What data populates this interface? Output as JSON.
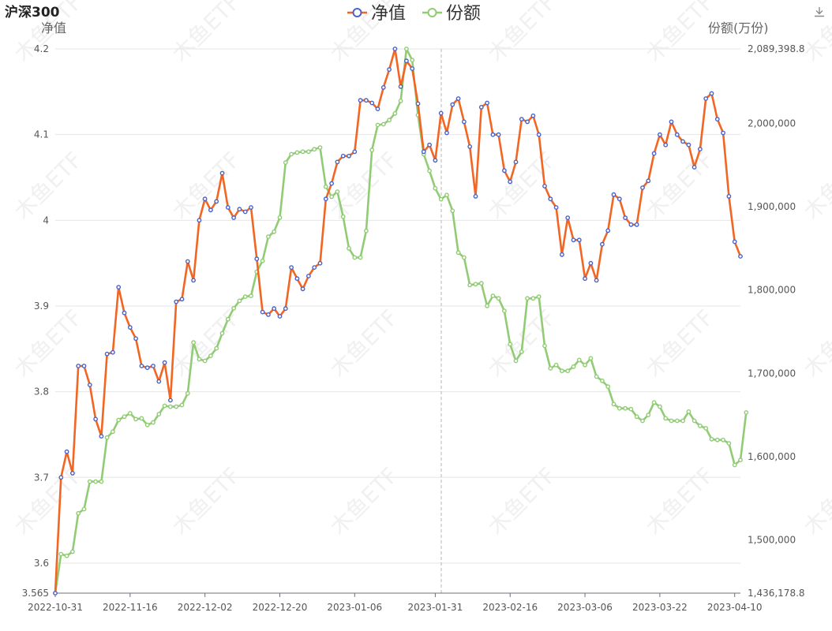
{
  "title": "沪深300",
  "chart_data": {
    "type": "line",
    "title": "沪深300",
    "legend": {
      "position": "top-center",
      "items": [
        "净值",
        "份额"
      ]
    },
    "yaxis_left": {
      "name": "净值",
      "min": 3.565,
      "max": 4.2,
      "ticks": [
        "3.565",
        "3.6",
        "3.7",
        "3.8",
        "3.9",
        "4",
        "4.1",
        "4.2"
      ]
    },
    "yaxis_right": {
      "name": "份额(万份)",
      "min": 1436178.8,
      "max": 2089398.8,
      "ticks": [
        "1,436,178.8",
        "1,500,000",
        "1,600,000",
        "1,700,000",
        "1,800,000",
        "1,900,000",
        "2,000,000",
        "2,089,398.8"
      ]
    },
    "x_tick_labels": [
      "2022-10-31",
      "2022-11-16",
      "2022-12-02",
      "2022-12-20",
      "2023-01-06",
      "2023-01-31",
      "2023-02-16",
      "2023-03-06",
      "2023-03-22",
      "2023-04-10"
    ],
    "grid": true,
    "watermark": "木鱼ETF",
    "colors": {
      "nav": "#f26522",
      "nav_marker": "#4a63c8",
      "share": "#91cc75"
    },
    "series": [
      {
        "name": "净值",
        "axis": "left",
        "values": [
          3.565,
          3.7,
          3.73,
          3.705,
          3.83,
          3.83,
          3.808,
          3.768,
          3.748,
          3.844,
          3.846,
          3.922,
          3.892,
          3.875,
          3.862,
          3.83,
          3.828,
          3.83,
          3.812,
          3.834,
          3.79,
          3.905,
          3.908,
          3.952,
          3.93,
          4.0,
          4.025,
          4.012,
          4.022,
          4.055,
          4.015,
          4.003,
          4.013,
          4.01,
          4.015,
          3.955,
          3.893,
          3.89,
          3.897,
          3.888,
          3.897,
          3.945,
          3.932,
          3.92,
          3.935,
          3.945,
          3.95,
          4.025,
          4.043,
          4.068,
          4.075,
          4.075,
          4.08,
          4.14,
          4.14,
          4.137,
          4.13,
          4.155,
          4.176,
          4.2,
          4.156,
          4.186,
          4.177,
          4.136,
          4.08,
          4.088,
          4.07,
          4.125,
          4.102,
          4.135,
          4.142,
          4.115,
          4.086,
          4.028,
          4.132,
          4.137,
          4.1,
          4.1,
          4.058,
          4.045,
          4.068,
          4.118,
          4.115,
          4.122,
          4.1,
          4.04,
          4.025,
          4.015,
          3.96,
          4.003,
          3.977,
          3.977,
          3.932,
          3.95,
          3.93,
          3.972,
          3.988,
          4.03,
          4.025,
          4.003,
          3.995,
          3.995,
          4.038,
          4.046,
          4.078,
          4.1,
          4.088,
          4.115,
          4.1,
          4.092,
          4.088,
          4.062,
          4.083,
          4.142,
          4.148,
          4.118,
          4.102,
          4.028,
          3.975,
          3.958
        ]
      },
      {
        "name": "份额",
        "axis": "right",
        "values": [
          1436178.8,
          1483000,
          1481000,
          1486000,
          1532000,
          1537000,
          1570000,
          1570000,
          1570000,
          1623000,
          1630000,
          1644000,
          1648000,
          1652000,
          1645000,
          1646000,
          1638000,
          1641000,
          1651000,
          1661000,
          1660000,
          1660000,
          1662000,
          1676000,
          1737000,
          1717000,
          1715000,
          1721000,
          1730000,
          1748000,
          1765000,
          1778000,
          1787000,
          1792000,
          1793000,
          1822000,
          1835000,
          1864000,
          1870000,
          1887000,
          1953000,
          1963000,
          1965000,
          1966000,
          1966000,
          1969000,
          1971000,
          1924000,
          1912000,
          1918000,
          1888000,
          1850000,
          1839000,
          1839000,
          1871000,
          1968000,
          1998000,
          1999000,
          2004000,
          2012000,
          2027000,
          2089398.8,
          2076000,
          2010000,
          1963000,
          1943000,
          1922000,
          1909000,
          1914000,
          1895000,
          1845000,
          1839000,
          1806000,
          1807000,
          1808000,
          1781000,
          1793000,
          1790000,
          1775000,
          1735000,
          1715000,
          1726000,
          1790000,
          1790000,
          1792000,
          1733000,
          1706000,
          1710000,
          1703000,
          1703000,
          1708000,
          1716000,
          1710000,
          1718000,
          1696000,
          1691000,
          1684000,
          1663000,
          1658000,
          1658000,
          1657000,
          1648000,
          1643000,
          1650000,
          1665000,
          1660000,
          1646000,
          1643000,
          1643000,
          1643000,
          1654000,
          1643000,
          1637000,
          1634000,
          1621000,
          1620000,
          1620000,
          1616000,
          1590000,
          1596000,
          1653000
        ]
      }
    ]
  }
}
